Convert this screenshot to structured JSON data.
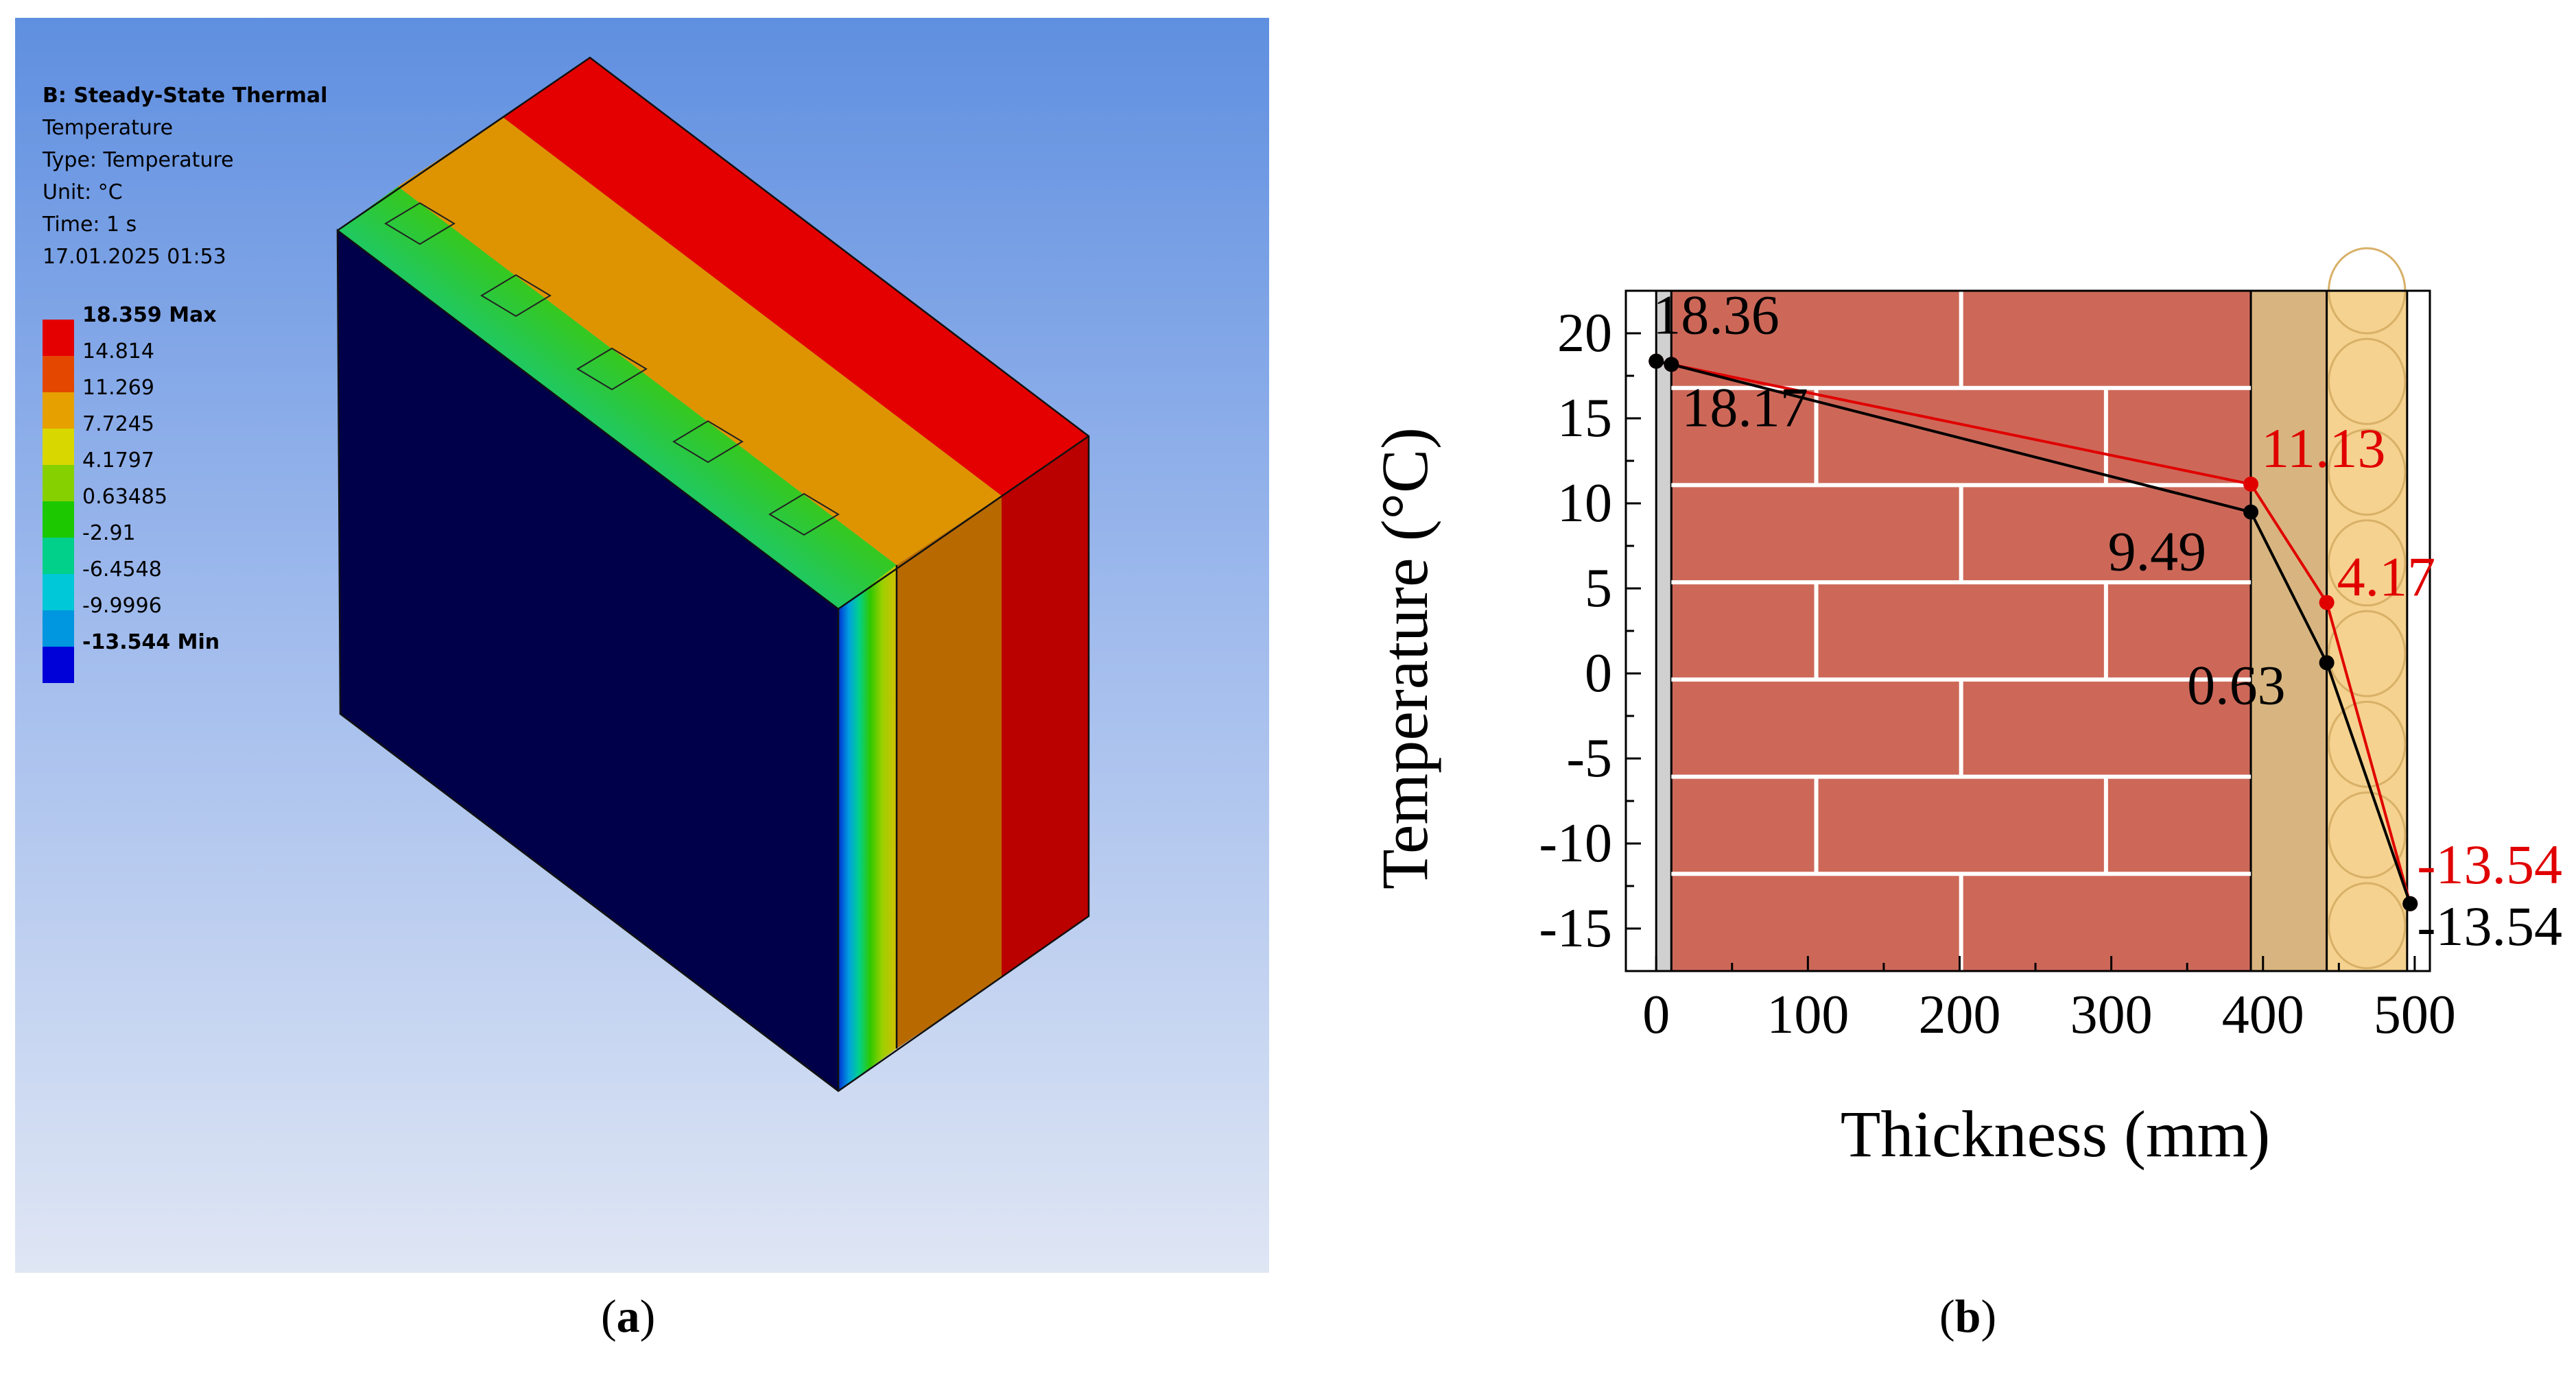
{
  "panel_a": {
    "label": "a",
    "legend": {
      "title": "B: Steady-State Thermal",
      "lines": [
        "Temperature",
        "Type: Temperature",
        "Unit: °C",
        "Time: 1 s",
        "17.01.2025 01:53"
      ]
    },
    "colorbar": [
      {
        "label": "18.359 Max",
        "color": "#e40000",
        "bold": true
      },
      {
        "label": "14.814",
        "color": "#e44800",
        "bold": false
      },
      {
        "label": "11.269",
        "color": "#e6a000",
        "bold": false
      },
      {
        "label": "7.7245",
        "color": "#d8d800",
        "bold": false
      },
      {
        "label": "4.1797",
        "color": "#86d000",
        "bold": false
      },
      {
        "label": "0.63485",
        "color": "#1cc800",
        "bold": false
      },
      {
        "label": "-2.91",
        "color": "#00d08a",
        "bold": false
      },
      {
        "label": "-6.4548",
        "color": "#00c8d8",
        "bold": false
      },
      {
        "label": "-9.9996",
        "color": "#0096e0",
        "bold": false
      },
      {
        "label": "-13.544 Min",
        "color": "#0000d8",
        "bold": true
      }
    ]
  },
  "panel_b": {
    "label": "b"
  },
  "chart_data": {
    "type": "line",
    "xlabel": "Thickness (mm)",
    "ylabel": "Temperature (°C)",
    "xlim": [
      -20,
      510
    ],
    "ylim": [
      -17.5,
      22.5
    ],
    "xticks": [
      0,
      100,
      200,
      300,
      400,
      500
    ],
    "yticks": [
      20,
      15,
      10,
      5,
      0,
      -5,
      -10,
      -15
    ],
    "layers": [
      {
        "name": "plaster",
        "x": [
          0,
          10
        ],
        "color": "#d0d0d0"
      },
      {
        "name": "brick",
        "x": [
          10,
          392
        ],
        "color": "#cd6859"
      },
      {
        "name": "wood",
        "x": [
          392,
          442
        ],
        "color": "#d8b580"
      },
      {
        "name": "insulation",
        "x": [
          442,
          495
        ],
        "color": "#f5d28f"
      }
    ],
    "series": [
      {
        "color": "#e00000",
        "x": [
          0,
          10,
          392,
          442,
          497
        ],
        "y": [
          18.36,
          18.17,
          11.13,
          4.17,
          -13.54
        ]
      },
      {
        "color": "#000000",
        "x": [
          0,
          10,
          392,
          442,
          497
        ],
        "y": [
          18.36,
          18.17,
          9.49,
          0.63,
          -13.54
        ]
      }
    ],
    "annotations": [
      {
        "text": "18.36",
        "color": "#000000"
      },
      {
        "text": "18.17",
        "color": "#000000"
      },
      {
        "text": "11.13",
        "color": "#e00000"
      },
      {
        "text": "9.49",
        "color": "#000000"
      },
      {
        "text": "4.17",
        "color": "#e00000"
      },
      {
        "text": "0.63",
        "color": "#000000"
      },
      {
        "text": "-13.54",
        "color": "#e00000"
      },
      {
        "text": "-13.54",
        "color": "#000000"
      }
    ]
  }
}
